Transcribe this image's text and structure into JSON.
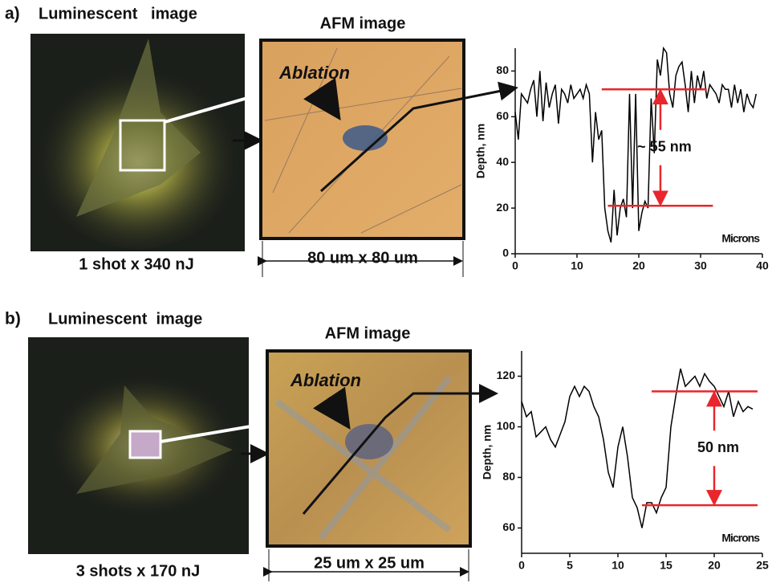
{
  "panels": [
    {
      "label": "a)",
      "lum_title": "Luminescent   image",
      "lum_caption": "1 shot x 340 nJ",
      "afm_title": "AFM  image",
      "afm_annotation": "Ablation",
      "afm_scale": "80 um x 80 um"
    },
    {
      "label": "b)",
      "lum_title": "Luminescent  image",
      "lum_caption": "3 shots x 170 nJ",
      "afm_title": "AFM  image",
      "afm_annotation": "Ablation",
      "afm_scale": "25 um x 25 um"
    }
  ],
  "chart_data": [
    {
      "type": "line",
      "ylabel": "Depth, nm",
      "xlabel": "Microns",
      "annotation": "~ 55 nm",
      "color": "#000000",
      "level_color": "#e8262b",
      "x": [
        0,
        0.5,
        1,
        1.5,
        2,
        2.5,
        3,
        3.5,
        4,
        4.5,
        5,
        5.5,
        6,
        6.5,
        7,
        7.5,
        8,
        8.5,
        9,
        9.5,
        10,
        10.5,
        11,
        11.5,
        12,
        12.5,
        13,
        13.5,
        14,
        14.5,
        15,
        15.5,
        16,
        16.5,
        17,
        17.5,
        18,
        18.5,
        19,
        19.5,
        20,
        20.5,
        21,
        21.5,
        22,
        22.5,
        23,
        23.5,
        24,
        24.5,
        25,
        25.5,
        26,
        26.5,
        27,
        27.5,
        28,
        28.5,
        29,
        29.5,
        30,
        30.5,
        31,
        31.5,
        32,
        32.5,
        33,
        33.5,
        34,
        34.5,
        35,
        35.5,
        36,
        36.5,
        37,
        37.5,
        38,
        38.5,
        39
      ],
      "values": [
        62,
        50,
        70,
        68,
        66,
        72,
        76,
        60,
        80,
        58,
        75,
        64,
        70,
        74,
        57,
        72,
        70,
        66,
        74,
        68,
        70,
        72,
        68,
        74,
        70,
        40,
        62,
        50,
        54,
        20,
        10,
        5,
        28,
        8,
        20,
        24,
        16,
        70,
        20,
        70,
        10,
        18,
        23,
        20,
        68,
        44,
        85,
        78,
        90,
        88,
        70,
        64,
        78,
        82,
        84,
        74,
        62,
        80,
        66,
        78,
        72,
        80,
        68,
        74,
        72,
        70,
        66,
        74,
        72,
        72,
        64,
        74,
        66,
        72,
        62,
        70,
        66,
        64,
        70
      ],
      "levels": [
        {
          "y": 72,
          "from": 14,
          "to": 31
        },
        {
          "y": 21,
          "from": 15,
          "to": 32
        }
      ],
      "xlim": [
        0,
        40
      ],
      "ylim": [
        0,
        90
      ],
      "xticks": [
        0,
        10,
        20,
        30,
        40
      ],
      "yticks": [
        0,
        20,
        40,
        60,
        80
      ]
    },
    {
      "type": "line",
      "ylabel": "Depth, nm",
      "xlabel": "Microns",
      "annotation": "50 nm",
      "color": "#000000",
      "level_color": "#e8262b",
      "x": [
        0,
        0.5,
        1,
        1.5,
        2,
        2.5,
        3,
        3.5,
        4,
        4.5,
        5,
        5.5,
        6,
        6.5,
        7,
        7.5,
        8,
        8.5,
        9,
        9.5,
        10,
        10.5,
        11,
        11.5,
        12,
        12.5,
        13,
        13.5,
        14,
        14.5,
        15,
        15.5,
        16,
        16.5,
        17,
        17.5,
        18,
        18.5,
        19,
        19.5,
        20,
        20.5,
        21,
        21.5,
        22,
        22.5,
        23,
        23.5,
        24
      ],
      "values": [
        110,
        104,
        106,
        96,
        98,
        100,
        95,
        92,
        97,
        102,
        112,
        116,
        112,
        116,
        114,
        108,
        104,
        95,
        82,
        76,
        92,
        100,
        88,
        72,
        68,
        60,
        70,
        70,
        66,
        72,
        76,
        100,
        112,
        123,
        116,
        118,
        120,
        116,
        121,
        118,
        116,
        112,
        108,
        114,
        104,
        110,
        106,
        108,
        107
      ],
      "levels": [
        {
          "y": 114,
          "from": 13.5,
          "to": 24.5
        },
        {
          "y": 69,
          "from": 12.5,
          "to": 24.5
        }
      ],
      "xlim": [
        0,
        25
      ],
      "ylim": [
        50,
        130
      ],
      "xticks": [
        0,
        5,
        10,
        15,
        20,
        25
      ],
      "yticks": [
        60,
        80,
        100,
        120
      ]
    }
  ]
}
